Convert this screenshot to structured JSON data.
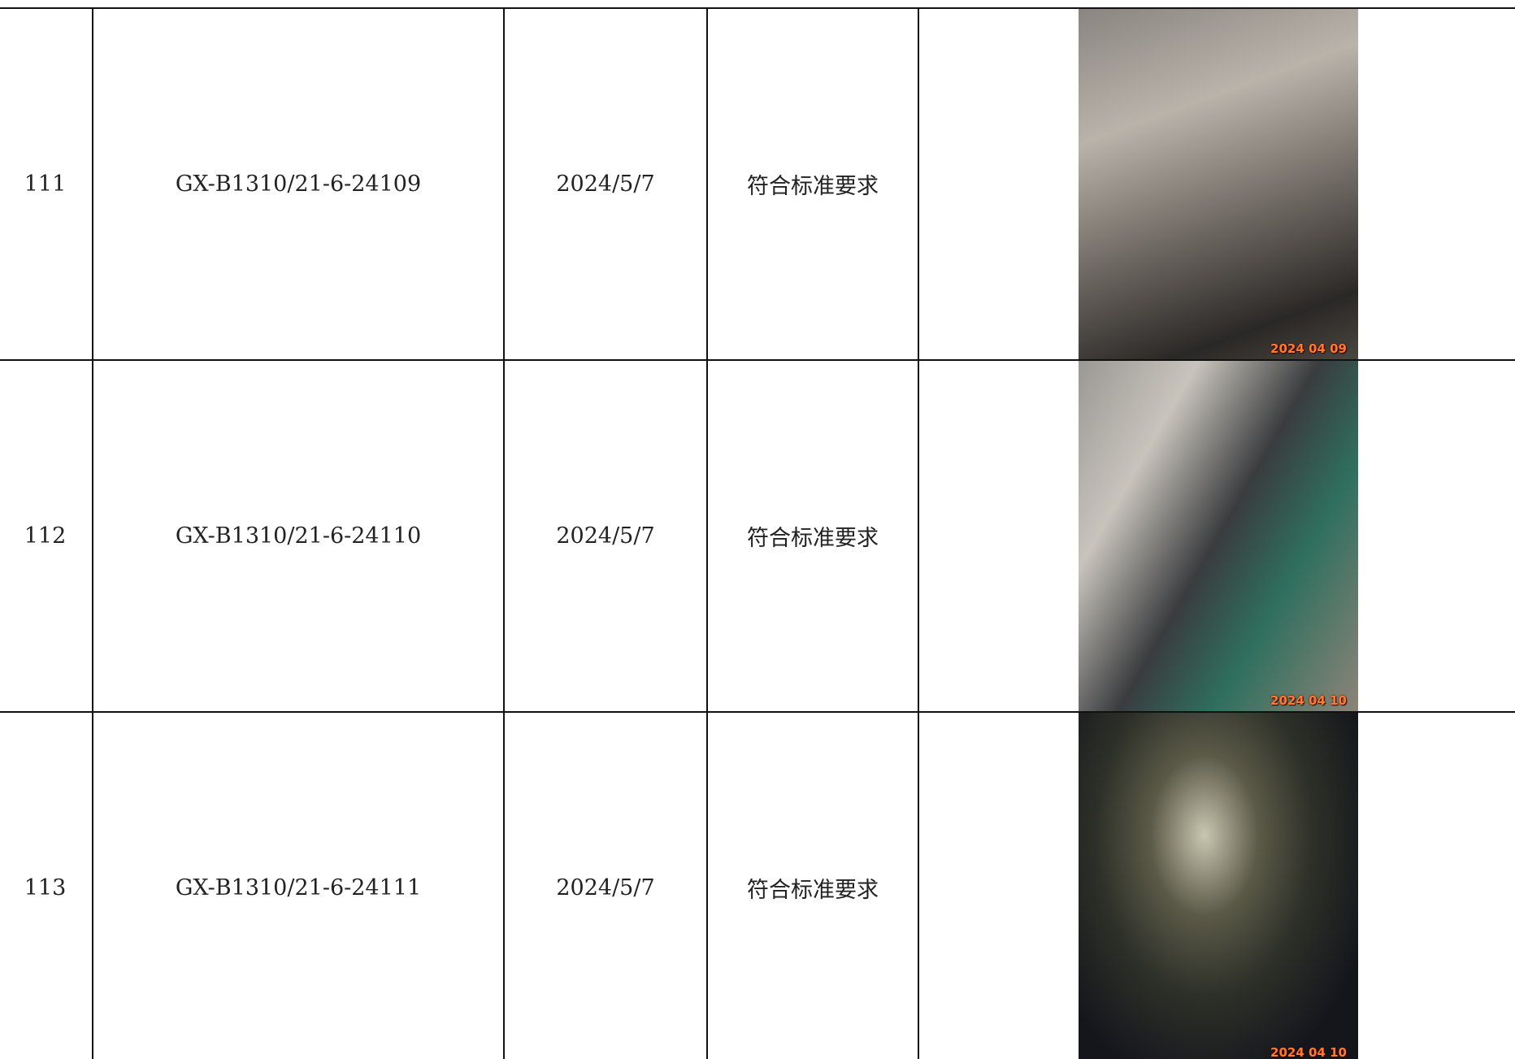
{
  "table": {
    "rows": [
      [
        "111",
        "GX-B1310/21-6-24109",
        "2024/5/7",
        "符合标准要求",
        "2024 04 09"
      ],
      [
        "112",
        "GX-B1310/21-6-24110",
        "2024/5/7",
        "符合标准要求",
        "2024 04 10"
      ],
      [
        "113",
        "GX-B1310/21-6-24111",
        "2024/5/7",
        "符合标准要求",
        "2024 04 10"
      ]
    ]
  }
}
